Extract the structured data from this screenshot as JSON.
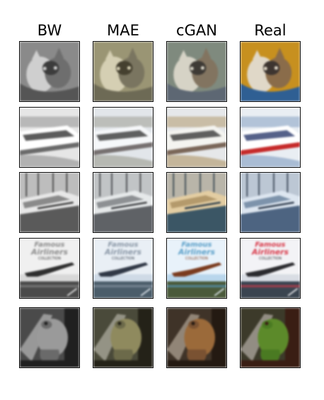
{
  "columns": [
    {
      "key": "bw",
      "label": "BW"
    },
    {
      "key": "mae",
      "label": "MAE"
    },
    {
      "key": "cgan",
      "label": "cGAN"
    },
    {
      "key": "real",
      "label": "Real"
    }
  ],
  "rows": [
    {
      "subject": "cats",
      "palettes": {
        "bw": {
          "bg": "#8a8a8a",
          "a": "#cfcfcf",
          "b": "#3c3c3c",
          "c": "#6e6e6e",
          "d": "#555555"
        },
        "mae": {
          "bg": "#9a9574",
          "a": "#d5cfb3",
          "b": "#45402f",
          "c": "#7a7560",
          "d": "#6d6a55"
        },
        "cgan": {
          "bg": "#7f8a7e",
          "a": "#d6d3c6",
          "b": "#3e3a35",
          "c": "#827460",
          "d": "#5d6773"
        },
        "real": {
          "bg": "#c7901f",
          "a": "#e0d8c8",
          "b": "#3d3530",
          "c": "#8a6c4a",
          "d": "#2f5f93"
        }
      }
    },
    {
      "subject": "yacht-white",
      "palettes": {
        "bw": {
          "bg": "#e6e6e6",
          "a": "#ffffff",
          "b": "#333333",
          "c": "#9a9a9a",
          "d": "#6a6a6a"
        },
        "mae": {
          "bg": "#e2e6ea",
          "a": "#f6f8fa",
          "b": "#3a3a3a",
          "c": "#a4a49a",
          "d": "#767070"
        },
        "cgan": {
          "bg": "#e6e8ea",
          "a": "#f4f4f0",
          "b": "#3a3a3a",
          "c": "#b5a078",
          "d": "#7a6658"
        },
        "real": {
          "bg": "#e9eef3",
          "a": "#ffffff",
          "b": "#2b3a6b",
          "c": "#8da6c6",
          "d": "#c62a2a"
        }
      }
    },
    {
      "subject": "boat-harbor",
      "palettes": {
        "bw": {
          "bg": "#bdbdbd",
          "a": "#e8e8e8",
          "b": "#3a3a3a",
          "c": "#8a8a8a",
          "d": "#5a5a5a"
        },
        "mae": {
          "bg": "#c1c4c6",
          "a": "#e6e9ea",
          "b": "#3b3d40",
          "c": "#8d9093",
          "d": "#5f6266"
        },
        "cgan": {
          "bg": "#b9b5a9",
          "a": "#e3cda2",
          "b": "#2f3f4a",
          "c": "#b49a6c",
          "d": "#3b5665"
        },
        "real": {
          "bg": "#bcc7d4",
          "a": "#dde6f0",
          "b": "#2e3b4c",
          "c": "#7d93ab",
          "d": "#4d6481"
        }
      }
    },
    {
      "subject": "book-cover",
      "palettes": {
        "bw": {
          "bg": "#d8d8d8",
          "a": "#f0f0f0",
          "b": "#2e2e2e",
          "c": "#8c8c8c",
          "d": "#4a4a4a"
        },
        "mae": {
          "bg": "#cfdae6",
          "a": "#e9eff5",
          "b": "#303846",
          "c": "#8a97a6",
          "d": "#4b5d6a"
        },
        "cgan": {
          "bg": "#b9d6ec",
          "a": "#e8f2fa",
          "b": "#7a3b1e",
          "c": "#5a9fc8",
          "d": "#4a5a3a"
        },
        "real": {
          "bg": "#d9dde4",
          "a": "#f3f3f6",
          "b": "#2a2a2e",
          "c": "#d83a4a",
          "d": "#3a4450"
        }
      }
    },
    {
      "subject": "frog",
      "palettes": {
        "bw": {
          "bg": "#4a4a4a",
          "a": "#9a9a9a",
          "b": "#202020",
          "c": "#6a6a6a",
          "d": "#d8d8d8"
        },
        "mae": {
          "bg": "#4a4a3a",
          "a": "#8f8a5e",
          "b": "#242218",
          "c": "#6c6a4a",
          "d": "#d2cfc2"
        },
        "cgan": {
          "bg": "#3f3328",
          "a": "#9b6a3a",
          "b": "#241a12",
          "c": "#7a5232",
          "d": "#d6c9b8"
        },
        "real": {
          "bg": "#3c3a2a",
          "a": "#5c8a2a",
          "b": "#3a1e14",
          "c": "#4a7a22",
          "d": "#d8d2cc"
        }
      }
    }
  ]
}
